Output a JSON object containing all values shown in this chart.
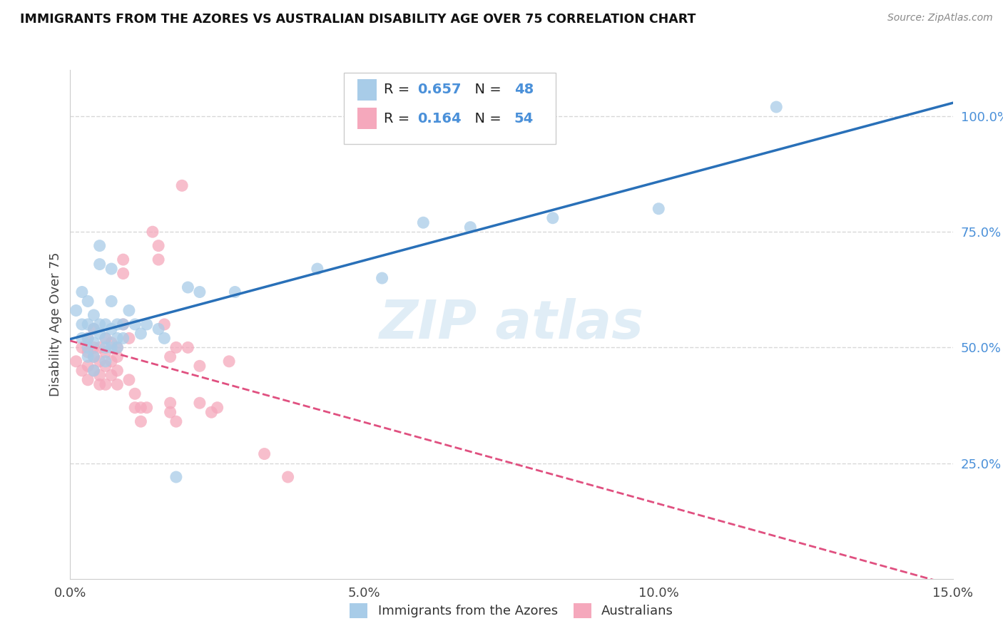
{
  "title": "IMMIGRANTS FROM THE AZORES VS AUSTRALIAN DISABILITY AGE OVER 75 CORRELATION CHART",
  "source": "Source: ZipAtlas.com",
  "ylabel": "Disability Age Over 75",
  "legend_blue_r": "0.657",
  "legend_blue_n": "48",
  "legend_pink_r": "0.164",
  "legend_pink_n": "54",
  "legend_label_blue": "Immigrants from the Azores",
  "legend_label_pink": "Australians",
  "blue_color": "#a8cce8",
  "pink_color": "#f5a8bc",
  "line_blue": "#2970b8",
  "line_pink": "#e05080",
  "background": "#ffffff",
  "grid_color": "#d8d8d8",
  "blue_scatter": [
    [
      0.001,
      0.58
    ],
    [
      0.002,
      0.62
    ],
    [
      0.002,
      0.55
    ],
    [
      0.002,
      0.52
    ],
    [
      0.003,
      0.6
    ],
    [
      0.003,
      0.55
    ],
    [
      0.003,
      0.52
    ],
    [
      0.003,
      0.5
    ],
    [
      0.003,
      0.48
    ],
    [
      0.004,
      0.57
    ],
    [
      0.004,
      0.54
    ],
    [
      0.004,
      0.51
    ],
    [
      0.004,
      0.48
    ],
    [
      0.004,
      0.45
    ],
    [
      0.005,
      0.72
    ],
    [
      0.005,
      0.68
    ],
    [
      0.005,
      0.55
    ],
    [
      0.005,
      0.53
    ],
    [
      0.006,
      0.55
    ],
    [
      0.006,
      0.52
    ],
    [
      0.006,
      0.5
    ],
    [
      0.006,
      0.47
    ],
    [
      0.007,
      0.67
    ],
    [
      0.007,
      0.6
    ],
    [
      0.007,
      0.54
    ],
    [
      0.007,
      0.5
    ],
    [
      0.008,
      0.55
    ],
    [
      0.008,
      0.52
    ],
    [
      0.008,
      0.5
    ],
    [
      0.009,
      0.55
    ],
    [
      0.009,
      0.52
    ],
    [
      0.01,
      0.58
    ],
    [
      0.011,
      0.55
    ],
    [
      0.012,
      0.53
    ],
    [
      0.013,
      0.55
    ],
    [
      0.015,
      0.54
    ],
    [
      0.016,
      0.52
    ],
    [
      0.018,
      0.22
    ],
    [
      0.02,
      0.63
    ],
    [
      0.022,
      0.62
    ],
    [
      0.028,
      0.62
    ],
    [
      0.042,
      0.67
    ],
    [
      0.053,
      0.65
    ],
    [
      0.06,
      0.77
    ],
    [
      0.068,
      0.76
    ],
    [
      0.082,
      0.78
    ],
    [
      0.1,
      0.8
    ],
    [
      0.12,
      1.02
    ]
  ],
  "pink_scatter": [
    [
      0.001,
      0.47
    ],
    [
      0.002,
      0.5
    ],
    [
      0.002,
      0.45
    ],
    [
      0.003,
      0.52
    ],
    [
      0.003,
      0.49
    ],
    [
      0.003,
      0.46
    ],
    [
      0.003,
      0.43
    ],
    [
      0.004,
      0.54
    ],
    [
      0.004,
      0.5
    ],
    [
      0.004,
      0.48
    ],
    [
      0.004,
      0.45
    ],
    [
      0.005,
      0.5
    ],
    [
      0.005,
      0.47
    ],
    [
      0.005,
      0.44
    ],
    [
      0.005,
      0.42
    ],
    [
      0.006,
      0.52
    ],
    [
      0.006,
      0.49
    ],
    [
      0.006,
      0.46
    ],
    [
      0.006,
      0.42
    ],
    [
      0.007,
      0.51
    ],
    [
      0.007,
      0.47
    ],
    [
      0.007,
      0.44
    ],
    [
      0.008,
      0.5
    ],
    [
      0.008,
      0.48
    ],
    [
      0.008,
      0.45
    ],
    [
      0.008,
      0.42
    ],
    [
      0.009,
      0.69
    ],
    [
      0.009,
      0.66
    ],
    [
      0.009,
      0.55
    ],
    [
      0.01,
      0.52
    ],
    [
      0.01,
      0.43
    ],
    [
      0.011,
      0.4
    ],
    [
      0.011,
      0.37
    ],
    [
      0.012,
      0.37
    ],
    [
      0.012,
      0.34
    ],
    [
      0.013,
      0.37
    ],
    [
      0.014,
      0.75
    ],
    [
      0.015,
      0.72
    ],
    [
      0.015,
      0.69
    ],
    [
      0.016,
      0.55
    ],
    [
      0.017,
      0.48
    ],
    [
      0.017,
      0.38
    ],
    [
      0.017,
      0.36
    ],
    [
      0.018,
      0.34
    ],
    [
      0.018,
      0.5
    ],
    [
      0.019,
      0.85
    ],
    [
      0.02,
      0.5
    ],
    [
      0.022,
      0.46
    ],
    [
      0.022,
      0.38
    ],
    [
      0.024,
      0.36
    ],
    [
      0.025,
      0.37
    ],
    [
      0.027,
      0.47
    ],
    [
      0.033,
      0.27
    ],
    [
      0.037,
      0.22
    ]
  ],
  "xlim": [
    0,
    0.15
  ],
  "ylim": [
    0.0,
    1.1
  ],
  "xticks": [
    0.0,
    0.05,
    0.1,
    0.15
  ],
  "xtick_labels": [
    "0.0%",
    "5.0%",
    "10.0%",
    "15.0%"
  ],
  "ytick_right_vals": [
    0.25,
    0.5,
    0.75,
    1.0
  ],
  "ytick_right_labels": [
    "25.0%",
    "50.0%",
    "75.0%",
    "100.0%"
  ]
}
